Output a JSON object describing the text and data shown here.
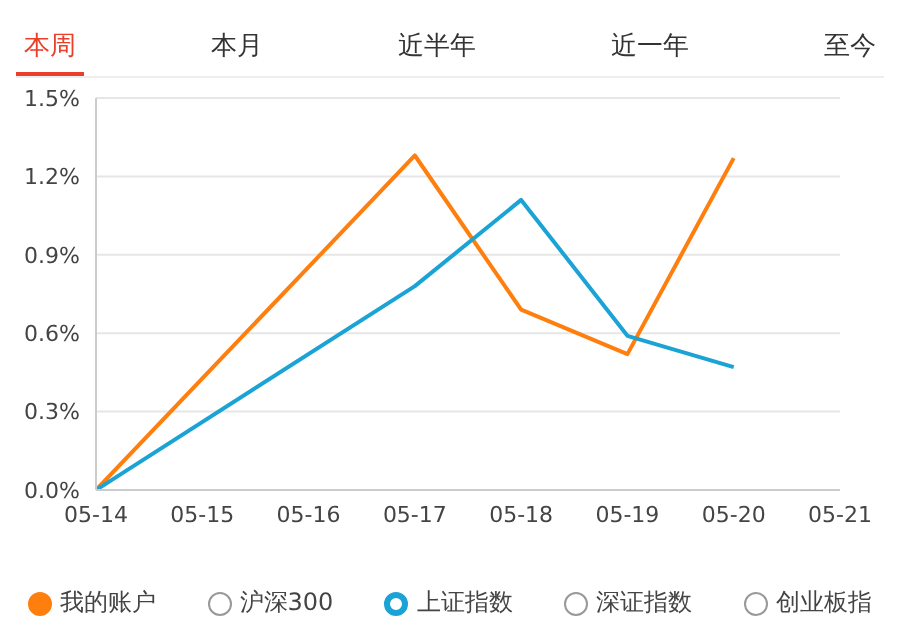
{
  "chart_data": {
    "type": "line",
    "annotations": [
      "本周",
      "本月",
      "近半年",
      "近一年",
      "至今"
    ],
    "categories": [
      "05-14",
      "05-15",
      "05-16",
      "05-17",
      "05-18",
      "05-19",
      "05-20",
      "05-21"
    ],
    "series": [
      {
        "name": "我的账户",
        "color": "#ff7f0e",
        "values": [
          0,
          null,
          null,
          1.28,
          0.69,
          0.52,
          1.27,
          null
        ]
      },
      {
        "name": "沪深300",
        "color": "#999999",
        "values": [
          null,
          null,
          null,
          null,
          null,
          null,
          null,
          null
        ]
      },
      {
        "name": "上证指数",
        "color": "#1aa3d4",
        "values": [
          0,
          null,
          null,
          0.78,
          1.11,
          0.59,
          0.47,
          null
        ]
      },
      {
        "name": "深证指数",
        "color": "#999999",
        "values": [
          null,
          null,
          null,
          null,
          null,
          null,
          null,
          null
        ]
      },
      {
        "name": "创业板指",
        "color": "#999999",
        "values": [
          null,
          null,
          null,
          null,
          null,
          null,
          null,
          null
        ]
      }
    ],
    "ylim": [
      0,
      1.5
    ],
    "yticks": [
      {
        "value": 0,
        "label": "0.0%"
      },
      {
        "value": 0.3,
        "label": "0.3%"
      },
      {
        "value": 0.6,
        "label": "0.6%"
      },
      {
        "value": 0.9,
        "label": "0.9%"
      },
      {
        "value": 1.2,
        "label": "1.2%"
      },
      {
        "value": 1.5,
        "label": "1.5%"
      }
    ],
    "grid": "y",
    "legend": "bottom",
    "marker": "none",
    "line_style": "solid"
  }
}
